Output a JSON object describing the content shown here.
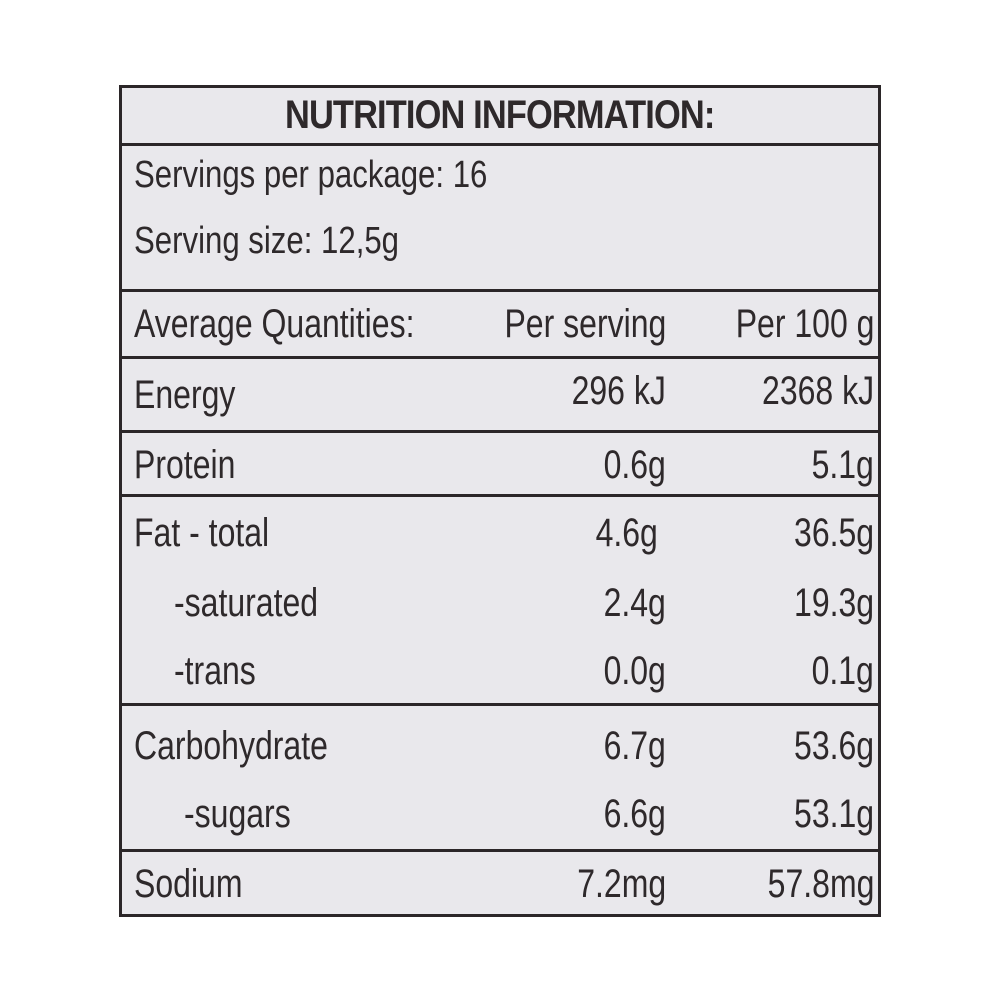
{
  "title": "NUTRITION INFORMATION:",
  "servings_per_package": "Servings per package: 16",
  "serving_size": "Serving size: 12,5g",
  "header": {
    "quantities": "Average Quantities:",
    "per_serving": "Per serving",
    "per_100g": "Per 100 g"
  },
  "rows": [
    {
      "name": "Energy",
      "per_serving": "296 kJ",
      "per_100g": "2368 kJ"
    },
    {
      "name": "Protein",
      "per_serving": "0.6g",
      "per_100g": "5.1g"
    },
    {
      "name": "Fat - total",
      "per_serving": "4.6g",
      "per_100g": "36.5g"
    },
    {
      "name": "-saturated",
      "per_serving": "2.4g",
      "per_100g": "19.3g"
    },
    {
      "name": "-trans",
      "per_serving": "0.0g",
      "per_100g": "0.1g"
    },
    {
      "name": "Carbohydrate",
      "per_serving": "6.7g",
      "per_100g": "53.6g"
    },
    {
      "name": "-sugars",
      "per_serving": "6.6g",
      "per_100g": "53.1g"
    },
    {
      "name": "Sodium",
      "per_serving": "7.2mg",
      "per_100g": "57.8mg"
    }
  ]
}
